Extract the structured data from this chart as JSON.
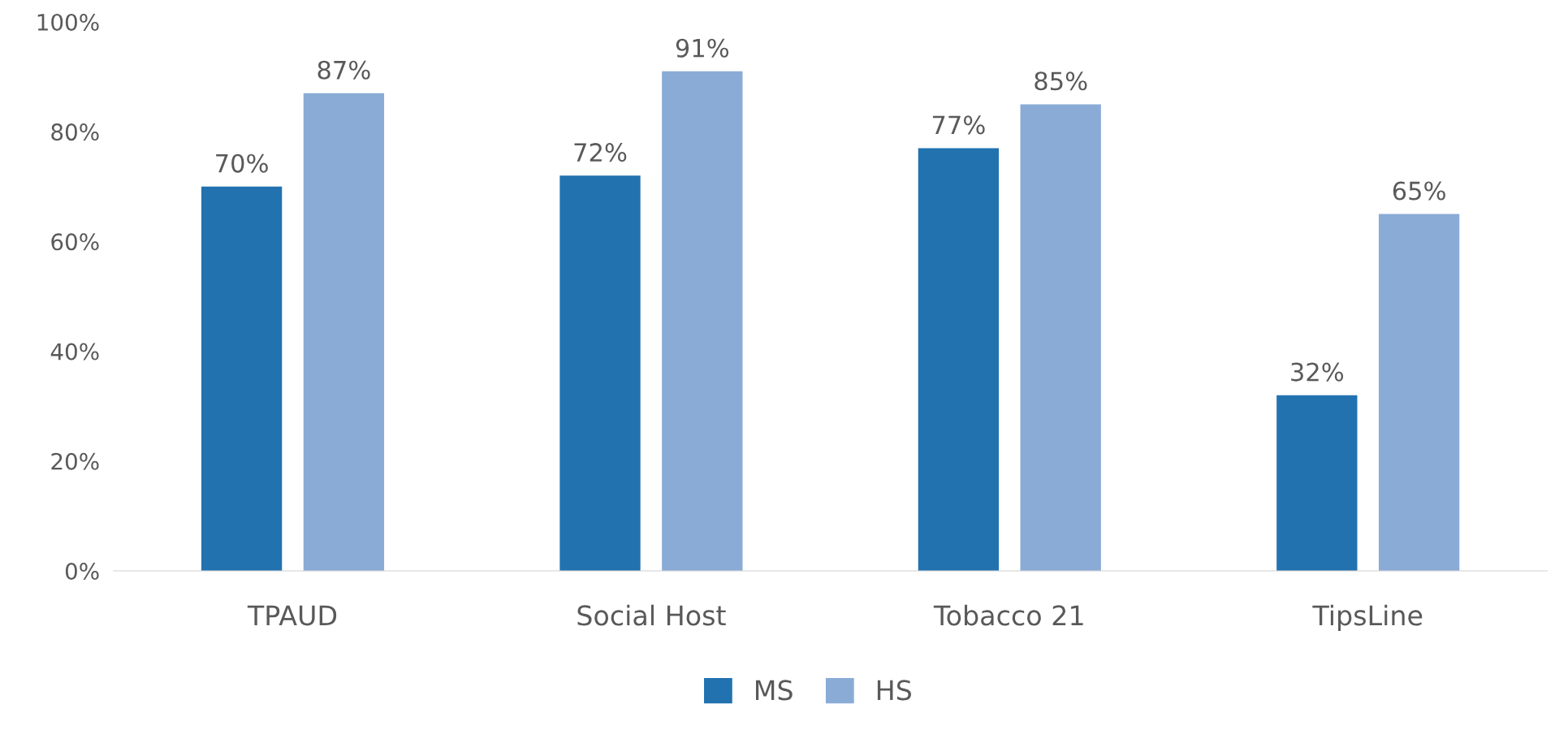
{
  "chart_data": {
    "type": "bar",
    "categories": [
      "TPAUD",
      "Social Host",
      "Tobacco 21",
      "TipsLine"
    ],
    "series": [
      {
        "name": "MS",
        "color": "#2272b0",
        "values": [
          70,
          72,
          77,
          32
        ],
        "value_labels": [
          "70%",
          "72%",
          "77%",
          "32%"
        ]
      },
      {
        "name": "HS",
        "color": "#8aabd6",
        "values": [
          87,
          91,
          85,
          65
        ],
        "value_labels": [
          "87%",
          "91%",
          "85%",
          "65%"
        ]
      }
    ],
    "ylim": [
      0,
      100
    ],
    "yticks": [
      {
        "value": 0,
        "label": "0%"
      },
      {
        "value": 20,
        "label": "20%"
      },
      {
        "value": 40,
        "label": "40%"
      },
      {
        "value": 60,
        "label": "60%"
      },
      {
        "value": 80,
        "label": "80%"
      },
      {
        "value": 100,
        "label": "100%"
      }
    ],
    "grid": false,
    "legend": "bottom"
  }
}
